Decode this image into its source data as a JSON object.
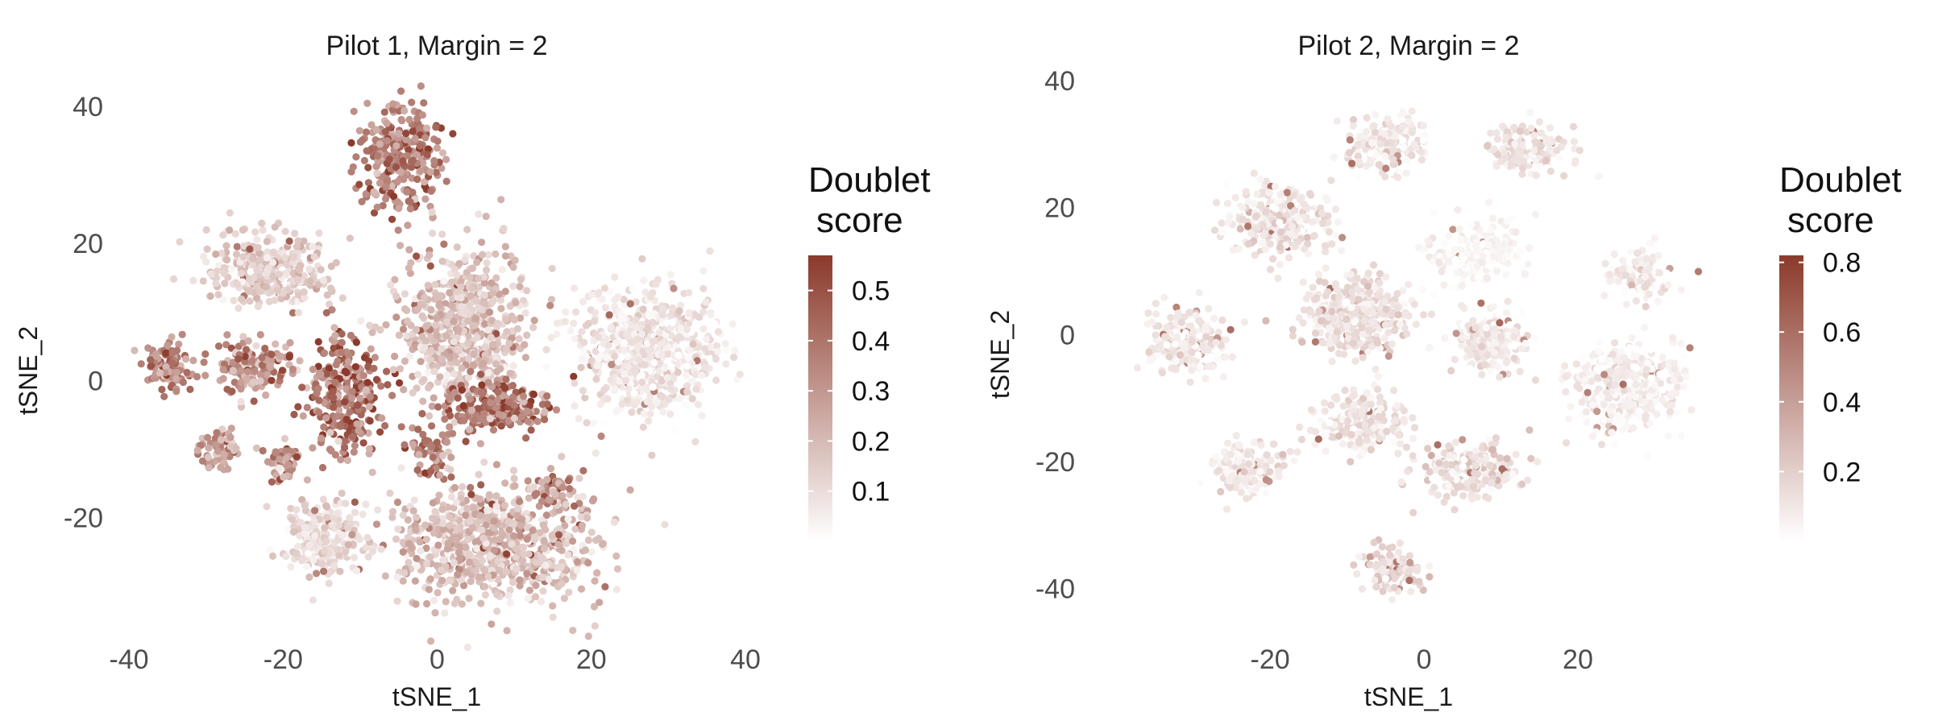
{
  "chart_data": [
    {
      "type": "scatter",
      "title": "Pilot 1, Margin = 2",
      "xlabel": "tSNE_1",
      "ylabel": "tSNE_2",
      "xlim": [
        -40,
        40
      ],
      "ylim": [
        -35,
        42
      ],
      "xticks": [
        "-40",
        "-20",
        "0",
        "20",
        "40"
      ],
      "xtick_values": [
        -40,
        -20,
        0,
        20,
        40
      ],
      "yticks": [
        "-20",
        "0",
        "20",
        "40"
      ],
      "ytick_values": [
        -20,
        0,
        20,
        40
      ],
      "grid": false,
      "legend": {
        "title_lines": [
          "Doublet",
          "score"
        ],
        "tick_labels": [
          "0.1",
          "0.2",
          "0.3",
          "0.4",
          "0.5"
        ],
        "tick_values": [
          0.1,
          0.2,
          0.3,
          0.4,
          0.5
        ],
        "range": [
          0.0,
          0.57
        ],
        "position": "right"
      },
      "color_low": "#ffffff",
      "color_high": "#8b3a2b",
      "clusters": [
        {
          "cx": -35,
          "cy": 2,
          "sx": 1.6,
          "sy": 2.0,
          "n": 110,
          "score": 0.32,
          "spread": 0.08
        },
        {
          "cx": -22,
          "cy": 16,
          "sx": 4.5,
          "sy": 3.2,
          "n": 360,
          "score": 0.14,
          "spread": 0.06
        },
        {
          "cx": -5,
          "cy": 33,
          "sx": 3.2,
          "sy": 4.5,
          "n": 300,
          "score": 0.36,
          "spread": 0.1
        },
        {
          "cx": -24,
          "cy": 2,
          "sx": 3.2,
          "sy": 2.2,
          "n": 150,
          "score": 0.3,
          "spread": 0.1
        },
        {
          "cx": -12,
          "cy": -2,
          "sx": 3.0,
          "sy": 5.0,
          "n": 260,
          "score": 0.4,
          "spread": 0.12
        },
        {
          "cx": -28,
          "cy": -10,
          "sx": 1.6,
          "sy": 1.6,
          "n": 60,
          "score": 0.28,
          "spread": 0.08
        },
        {
          "cx": -20,
          "cy": -12,
          "sx": 1.4,
          "sy": 1.8,
          "n": 60,
          "score": 0.3,
          "spread": 0.1
        },
        {
          "cx": -15,
          "cy": -23,
          "sx": 3.2,
          "sy": 3.2,
          "n": 220,
          "score": 0.1,
          "spread": 0.05
        },
        {
          "cx": 3,
          "cy": 8,
          "sx": 4.8,
          "sy": 7.0,
          "n": 620,
          "score": 0.17,
          "spread": 0.06
        },
        {
          "cx": 7,
          "cy": -4,
          "sx": 4.0,
          "sy": 2.2,
          "n": 200,
          "score": 0.38,
          "spread": 0.1
        },
        {
          "cx": -1,
          "cy": -10,
          "sx": 1.5,
          "sy": 2.5,
          "n": 60,
          "score": 0.35,
          "spread": 0.1
        },
        {
          "cx": 27,
          "cy": 4,
          "sx": 5.5,
          "sy": 5.5,
          "n": 700,
          "score": 0.07,
          "spread": 0.04
        },
        {
          "cx": 7,
          "cy": -24,
          "sx": 8.0,
          "sy": 5.0,
          "n": 780,
          "score": 0.18,
          "spread": 0.07
        },
        {
          "cx": 15,
          "cy": -16,
          "sx": 1.5,
          "sy": 1.5,
          "n": 60,
          "score": 0.3,
          "spread": 0.1
        }
      ]
    },
    {
      "type": "scatter",
      "title": "Pilot 2, Margin = 2",
      "xlabel": "tSNE_1",
      "ylabel": "tSNE_2",
      "xlim": [
        -42,
        38
      ],
      "ylim": [
        -45,
        40
      ],
      "xticks": [
        "-20",
        "0",
        "20"
      ],
      "xtick_values": [
        -20,
        0,
        20
      ],
      "yticks": [
        "-40",
        "-20",
        "0",
        "20",
        "40"
      ],
      "ytick_values": [
        -40,
        -20,
        0,
        20,
        40
      ],
      "grid": false,
      "legend": {
        "title_lines": [
          "Doublet",
          "score"
        ],
        "tick_labels": [
          "0.2",
          "0.4",
          "0.6",
          "0.8"
        ],
        "tick_values": [
          0.2,
          0.4,
          0.6,
          0.8
        ],
        "range": [
          0.0,
          0.82
        ],
        "position": "right"
      },
      "color_low": "#ffffff",
      "color_high": "#8b3a2b",
      "clusters": [
        {
          "cx": -31,
          "cy": -1,
          "sx": 3.0,
          "sy": 3.0,
          "n": 220,
          "score": 0.1,
          "spread": 0.06
        },
        {
          "cx": -19,
          "cy": 18,
          "sx": 3.8,
          "sy": 3.2,
          "n": 300,
          "score": 0.1,
          "spread": 0.07
        },
        {
          "cx": -5,
          "cy": 30,
          "sx": 3.0,
          "sy": 2.6,
          "n": 180,
          "score": 0.1,
          "spread": 0.06
        },
        {
          "cx": 14,
          "cy": 29,
          "sx": 3.0,
          "sy": 2.4,
          "n": 160,
          "score": 0.1,
          "spread": 0.06
        },
        {
          "cx": 7,
          "cy": 13,
          "sx": 3.5,
          "sy": 3.3,
          "n": 200,
          "score": 0.04,
          "spread": 0.03
        },
        {
          "cx": 28,
          "cy": 9,
          "sx": 2.6,
          "sy": 2.4,
          "n": 110,
          "score": 0.09,
          "spread": 0.06
        },
        {
          "cx": -9,
          "cy": 3,
          "sx": 4.0,
          "sy": 3.6,
          "n": 380,
          "score": 0.12,
          "spread": 0.06
        },
        {
          "cx": 9,
          "cy": -1,
          "sx": 3.0,
          "sy": 3.0,
          "n": 200,
          "score": 0.08,
          "spread": 0.05
        },
        {
          "cx": 26,
          "cy": -8,
          "sx": 4.2,
          "sy": 4.0,
          "n": 400,
          "score": 0.07,
          "spread": 0.05
        },
        {
          "cx": -8,
          "cy": -14,
          "sx": 3.6,
          "sy": 2.4,
          "n": 220,
          "score": 0.1,
          "spread": 0.06
        },
        {
          "cx": 6,
          "cy": -21,
          "sx": 4.0,
          "sy": 2.4,
          "n": 240,
          "score": 0.13,
          "spread": 0.07
        },
        {
          "cx": -23,
          "cy": -21,
          "sx": 3.0,
          "sy": 2.4,
          "n": 160,
          "score": 0.09,
          "spread": 0.06
        },
        {
          "cx": -4,
          "cy": -37,
          "sx": 2.4,
          "sy": 2.0,
          "n": 120,
          "score": 0.12,
          "spread": 0.08
        }
      ]
    }
  ]
}
